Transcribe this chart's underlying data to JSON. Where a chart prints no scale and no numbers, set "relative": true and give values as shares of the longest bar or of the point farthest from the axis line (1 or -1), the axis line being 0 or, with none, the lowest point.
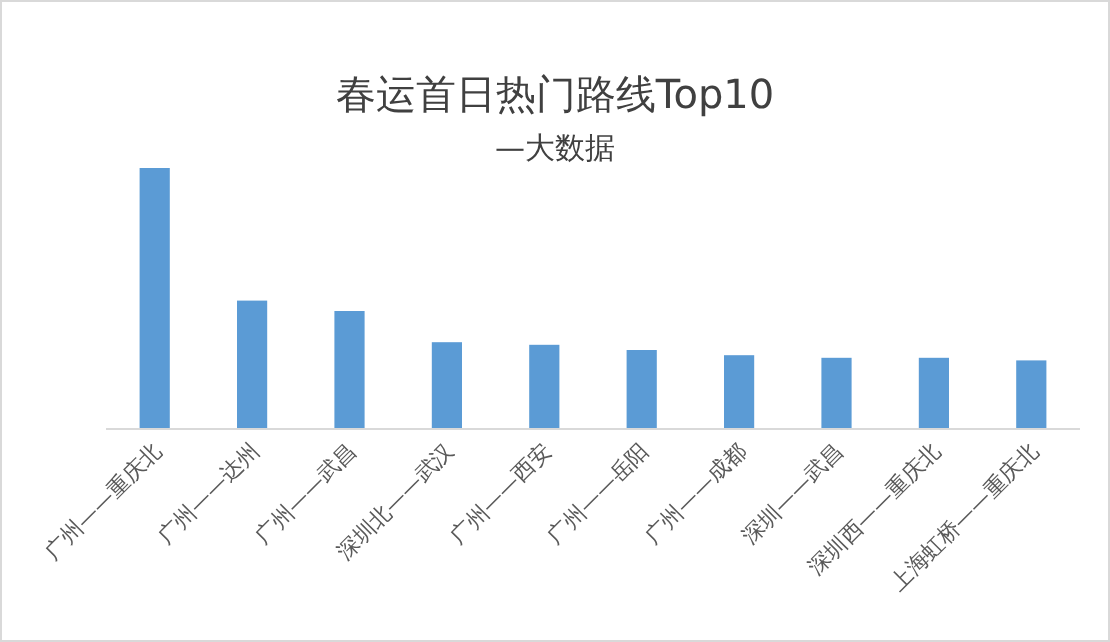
{
  "chart_data": {
    "type": "bar",
    "title": "春运首日热门路线Top10",
    "subtitle": "—大数据",
    "relative": true,
    "categories": [
      "广州——重庆北",
      "广州——达州",
      "广州——武昌",
      "深圳北——武汉",
      "广州——西安",
      "广州——岳阳",
      "广州——成都",
      "深圳——武昌",
      "深圳西——重庆北",
      "上海虹桥——重庆北"
    ],
    "values": [
      1,
      0.49,
      0.45,
      0.33,
      0.32,
      0.3,
      0.28,
      0.27,
      0.27,
      0.26
    ],
    "color": "#5b9bd5"
  }
}
